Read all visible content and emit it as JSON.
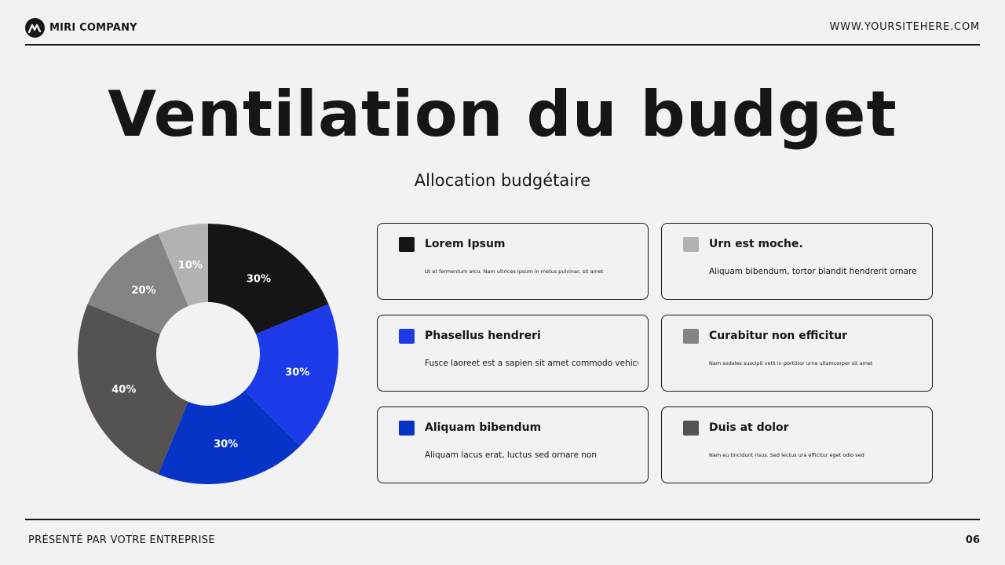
{
  "header": {
    "company": "MIRI COMPANY",
    "website": "WWW.YOURSITEHERE.COM",
    "logo_icon": "m-logo-icon"
  },
  "title": "Ventilation du budget",
  "subtitle": "Allocation budgétaire",
  "chart_data": {
    "type": "pie",
    "style": "donut",
    "title": "",
    "slices": [
      {
        "label": "30%",
        "value": 30,
        "color": "#161414"
      },
      {
        "label": "30%",
        "value": 30,
        "color": "#1c3ae8"
      },
      {
        "label": "30%",
        "value": 30,
        "color": "#0634c6"
      },
      {
        "label": "40%",
        "value": 40,
        "color": "#565252"
      },
      {
        "label": "20%",
        "value": 20,
        "color": "#878383"
      },
      {
        "label": "10%",
        "value": 10,
        "color": "#b3b1b1"
      }
    ]
  },
  "legend_cards": [
    {
      "title": "Lorem Ipsum",
      "body": "Ut et fermentum arcu. Nam ultrices ipsum in metus pulvinar, sit amet",
      "color": "#161414",
      "small": true
    },
    {
      "title": "Urn est moche.",
      "body": "Aliquam bibendum, tortor blandit hendrerit ornare",
      "color": "#b3b1b1",
      "small": false
    },
    {
      "title": "Phasellus hendreri",
      "body": "Fusce laoreet est a sapien sit amet commodo vehicula",
      "color": "#1c3ae8",
      "small": false
    },
    {
      "title": "Curabitur non efficitur",
      "body": "Nam sodales suscipit velit in porttitor urne ullamcorper sit amet",
      "color": "#878383",
      "small": true
    },
    {
      "title": "Aliquam bibendum",
      "body": "Aliquam lacus erat, luctus sed ornare non",
      "color": "#0634c6",
      "small": false
    },
    {
      "title": "Duis at dolor",
      "body": "Nam eu tincidunt risus. Sed lectus ura efficitur eget odio sed",
      "color": "#565252",
      "small": true
    }
  ],
  "footer": {
    "presenter": "PRÉSENTÉ PAR VOTRE ENTREPRISE",
    "page_number": "06"
  }
}
